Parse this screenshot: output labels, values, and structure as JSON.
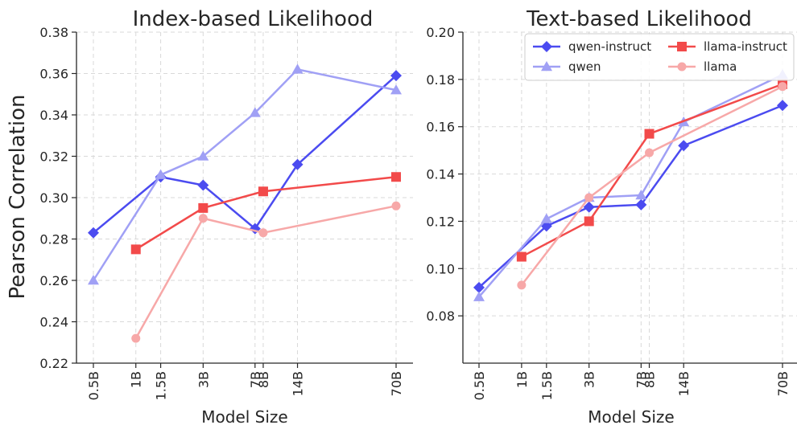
{
  "figure": {
    "ylabel": "Pearson Correlation"
  },
  "chart_data": [
    {
      "type": "line",
      "title": "Index-based Likelihood",
      "xlabel": "Model Size",
      "ylabel": "Pearson Correlation",
      "x_scale": "log",
      "x_ticks": [
        {
          "label": "0.5B",
          "value": 0.5
        },
        {
          "label": "1B",
          "value": 1
        },
        {
          "label": "1.5B",
          "value": 1.5
        },
        {
          "label": "3B",
          "value": 3
        },
        {
          "label": "7B",
          "value": 7
        },
        {
          "label": "8B",
          "value": 8
        },
        {
          "label": "14B",
          "value": 14
        },
        {
          "label": "70B",
          "value": 70
        }
      ],
      "ylim": [
        0.22,
        0.38
      ],
      "y_ticks": [
        "0.22",
        "0.24",
        "0.26",
        "0.28",
        "0.30",
        "0.32",
        "0.34",
        "0.36",
        "0.38"
      ],
      "grid": true,
      "series": [
        {
          "name": "qwen-instruct",
          "color": "#4b4bf0",
          "marker": "diamond",
          "x": [
            0.5,
            1.5,
            3,
            7,
            14,
            70
          ],
          "y": [
            0.283,
            0.31,
            0.306,
            0.285,
            0.316,
            0.359
          ]
        },
        {
          "name": "qwen",
          "color": "#a0a0f5",
          "marker": "triangle",
          "x": [
            0.5,
            1.5,
            3,
            7,
            14,
            70
          ],
          "y": [
            0.26,
            0.311,
            0.32,
            0.341,
            0.362,
            0.352
          ]
        },
        {
          "name": "llama-instruct",
          "color": "#f24a4a",
          "marker": "square",
          "x": [
            1,
            3,
            8,
            70
          ],
          "y": [
            0.275,
            0.295,
            0.303,
            0.31
          ]
        },
        {
          "name": "llama",
          "color": "#f7a8a8",
          "marker": "circle",
          "x": [
            1,
            3,
            8,
            70
          ],
          "y": [
            0.232,
            0.29,
            0.283,
            0.296
          ]
        }
      ]
    },
    {
      "type": "line",
      "title": "Text-based Likelihood",
      "xlabel": "Model Size",
      "x_scale": "log",
      "x_ticks": [
        {
          "label": "0.5B",
          "value": 0.5
        },
        {
          "label": "1B",
          "value": 1
        },
        {
          "label": "1.5B",
          "value": 1.5
        },
        {
          "label": "3B",
          "value": 3
        },
        {
          "label": "7B",
          "value": 7
        },
        {
          "label": "8B",
          "value": 8
        },
        {
          "label": "14B",
          "value": 14
        },
        {
          "label": "70B",
          "value": 70
        }
      ],
      "ylim": [
        0.06,
        0.2
      ],
      "y_ticks": [
        "0.08",
        "0.10",
        "0.12",
        "0.14",
        "0.16",
        "0.18",
        "0.20"
      ],
      "grid": true,
      "legend": "top-right",
      "series": [
        {
          "name": "qwen-instruct",
          "color": "#4b4bf0",
          "marker": "diamond",
          "x": [
            0.5,
            1.5,
            3,
            7,
            14,
            70
          ],
          "y": [
            0.092,
            0.118,
            0.126,
            0.127,
            0.152,
            0.169
          ]
        },
        {
          "name": "qwen",
          "color": "#a0a0f5",
          "marker": "triangle",
          "x": [
            0.5,
            1.5,
            3,
            7,
            14,
            70
          ],
          "y": [
            0.088,
            0.121,
            0.13,
            0.131,
            0.162,
            0.182
          ]
        },
        {
          "name": "llama-instruct",
          "color": "#f24a4a",
          "marker": "square",
          "x": [
            1,
            3,
            8,
            70
          ],
          "y": [
            0.105,
            0.12,
            0.157,
            0.178
          ]
        },
        {
          "name": "llama",
          "color": "#f7a8a8",
          "marker": "circle",
          "x": [
            1,
            3,
            8,
            70
          ],
          "y": [
            0.093,
            0.13,
            0.149,
            0.177
          ]
        }
      ]
    }
  ]
}
